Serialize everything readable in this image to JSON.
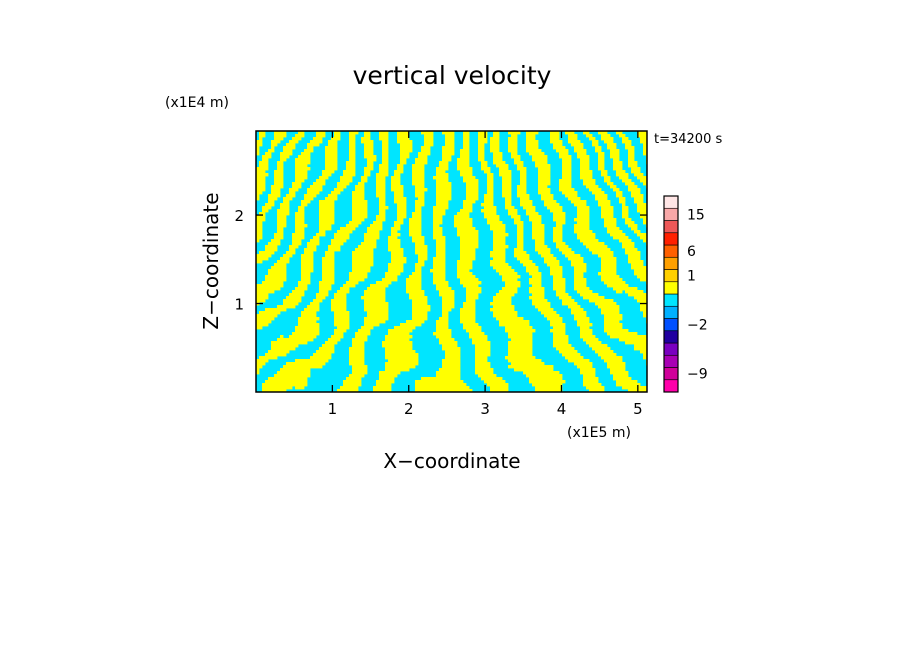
{
  "chart_data": {
    "type": "heatmap",
    "title": "vertical velocity",
    "time_label": "t=34200 s",
    "xlabel": "X−coordinate",
    "ylabel": "Z−coordinate",
    "x_scale_label": "(x1E5 m)",
    "y_scale_label": "(x1E4 m)",
    "xlim": [
      0,
      5.12
    ],
    "ylim": [
      0,
      2.95
    ],
    "x_ticks": [
      {
        "value": 1,
        "label": "1"
      },
      {
        "value": 2,
        "label": "2"
      },
      {
        "value": 3,
        "label": "3"
      },
      {
        "value": 4,
        "label": "4"
      },
      {
        "value": 5,
        "label": "5"
      }
    ],
    "y_ticks": [
      {
        "value": 1,
        "label": "1"
      },
      {
        "value": 2,
        "label": "2"
      }
    ],
    "field_colors": {
      "positive": "#ffff00",
      "negative": "#00e5ff"
    },
    "colorbar": {
      "levels": [
        {
          "color": "#ff00aa"
        },
        {
          "color": "#d0009a"
        },
        {
          "color": "#a800b4"
        },
        {
          "color": "#7a00c0"
        },
        {
          "color": "#2000a0"
        },
        {
          "color": "#0050ff"
        },
        {
          "color": "#00b0ff"
        },
        {
          "color": "#00e5ff"
        },
        {
          "color": "#ffff00"
        },
        {
          "color": "#ffd000"
        },
        {
          "color": "#ffa000"
        },
        {
          "color": "#ff6000"
        },
        {
          "color": "#ff2000"
        },
        {
          "color": "#ee5858"
        },
        {
          "color": "#f8a8a8"
        },
        {
          "color": "#ffe6e6"
        }
      ],
      "tick_labels": [
        {
          "level_index": 1,
          "label": "−9"
        },
        {
          "level_index": 5,
          "label": "−2"
        },
        {
          "level_index": 9,
          "label": "1"
        },
        {
          "level_index": 11,
          "label": "6"
        },
        {
          "level_index": 14,
          "label": "15"
        }
      ]
    }
  }
}
